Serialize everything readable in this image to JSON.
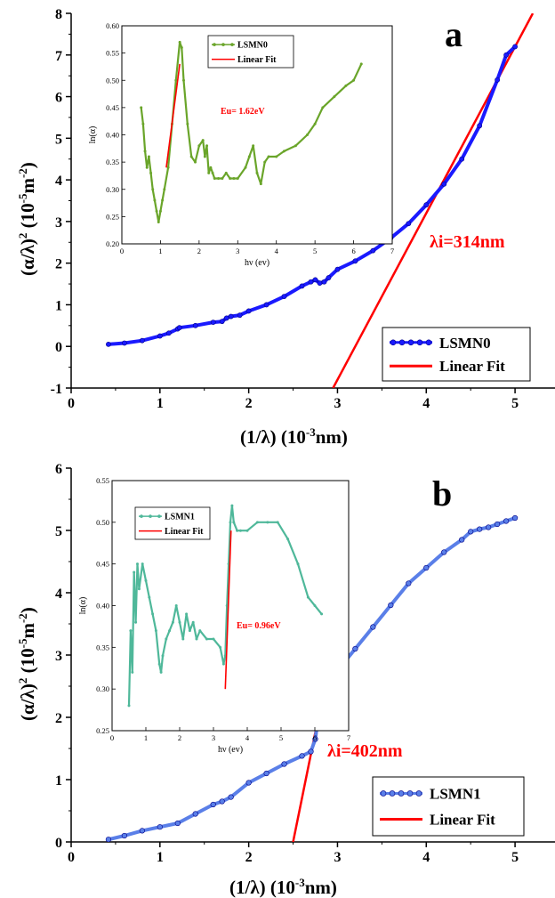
{
  "chart_data": [
    {
      "type": "scatter",
      "panel_label": "a",
      "xlabel_main": "(1/λ) (10",
      "xlabel_sup": "-3",
      "xlabel_tail": "nm)",
      "ylabel_main": "(α/λ)",
      "ylabel_sup1": "2",
      "ylabel_mid": " (10",
      "ylabel_sup2": "-5",
      "ylabel_tail": "m",
      "ylabel_sup3": "-2",
      "ylabel_close": ")",
      "xlim": [
        0,
        5.45
      ],
      "ylim": [
        -1,
        8
      ],
      "xticks": [
        "0",
        "1",
        "2",
        "3",
        "4",
        "5"
      ],
      "yticks": [
        "-1",
        "0",
        "1",
        "2",
        "3",
        "4",
        "5",
        "6",
        "7",
        "8"
      ],
      "annotation": "λi=314nm",
      "legend": [
        "LSMN0",
        "Linear Fit"
      ],
      "series": [
        {
          "name": "LSMN0",
          "color": "#1a1aff",
          "x": [
            0.42,
            0.6,
            0.8,
            1.0,
            1.1,
            1.2,
            1.22,
            1.4,
            1.6,
            1.7,
            1.75,
            1.8,
            1.9,
            2.0,
            2.2,
            2.4,
            2.6,
            2.7,
            2.75,
            2.8,
            2.85,
            2.9,
            3.0,
            3.2,
            3.4,
            3.6,
            3.8,
            4.0,
            4.2,
            4.4,
            4.6,
            4.8,
            4.9,
            5.0
          ],
          "y": [
            0.05,
            0.08,
            0.14,
            0.25,
            0.32,
            0.42,
            0.45,
            0.5,
            0.58,
            0.6,
            0.68,
            0.72,
            0.75,
            0.85,
            1.0,
            1.2,
            1.45,
            1.55,
            1.6,
            1.52,
            1.55,
            1.65,
            1.85,
            2.05,
            2.3,
            2.6,
            2.95,
            3.4,
            3.9,
            4.5,
            5.3,
            6.4,
            7.0,
            7.2
          ]
        },
        {
          "name": "Linear Fit",
          "color": "#ff0000",
          "x": [
            2.95,
            5.2
          ],
          "y": [
            -1.0,
            8.0
          ]
        }
      ],
      "inset": {
        "xlabel": "hν (ev)",
        "ylabel": "ln(α)",
        "xlim": [
          0,
          7
        ],
        "ylim": [
          0.2,
          0.6
        ],
        "xticks": [
          "0",
          "1",
          "2",
          "3",
          "4",
          "5",
          "6",
          "7"
        ],
        "yticks": [
          "0.20",
          "0.25",
          "0.30",
          "0.35",
          "0.40",
          "0.45",
          "0.50",
          "0.55",
          "0.60"
        ],
        "annotation": "Eu= 1.62eV",
        "legend": [
          "LSMN0",
          "Linear Fit"
        ],
        "series": [
          {
            "name": "LSMN0",
            "color": "#6aa52a",
            "x": [
              0.5,
              0.55,
              0.6,
              0.65,
              0.7,
              0.75,
              0.8,
              0.85,
              0.9,
              0.95,
              1.0,
              1.05,
              1.1,
              1.2,
              1.3,
              1.4,
              1.5,
              1.55,
              1.6,
              1.7,
              1.8,
              1.9,
              2.0,
              2.1,
              2.15,
              2.2,
              2.25,
              2.3,
              2.35,
              2.4,
              2.5,
              2.6,
              2.7,
              2.8,
              2.9,
              3.0,
              3.2,
              3.3,
              3.4,
              3.5,
              3.6,
              3.7,
              3.8,
              4.0,
              4.2,
              4.5,
              4.8,
              5.0,
              5.2,
              5.5,
              5.8,
              6.0,
              6.2
            ],
            "y": [
              0.45,
              0.42,
              0.37,
              0.34,
              0.36,
              0.33,
              0.3,
              0.28,
              0.26,
              0.24,
              0.26,
              0.28,
              0.3,
              0.34,
              0.42,
              0.5,
              0.57,
              0.56,
              0.5,
              0.42,
              0.36,
              0.35,
              0.38,
              0.39,
              0.36,
              0.38,
              0.33,
              0.34,
              0.33,
              0.32,
              0.32,
              0.32,
              0.33,
              0.32,
              0.32,
              0.32,
              0.34,
              0.36,
              0.38,
              0.33,
              0.31,
              0.35,
              0.36,
              0.36,
              0.37,
              0.38,
              0.4,
              0.42,
              0.45,
              0.47,
              0.49,
              0.5,
              0.53
            ]
          },
          {
            "name": "Linear Fit",
            "color": "#ff0000",
            "x": [
              1.15,
              1.5
            ],
            "y": [
              0.34,
              0.53
            ]
          }
        ]
      }
    },
    {
      "type": "scatter",
      "panel_label": "b",
      "xlabel_main": "(1/λ) (10",
      "xlabel_sup": "-3",
      "xlabel_tail": "nm)",
      "ylabel_main": "(α/λ)",
      "ylabel_sup1": "2",
      "ylabel_mid": " (10",
      "ylabel_sup2": "-5",
      "ylabel_tail": "m",
      "ylabel_sup3": "-2",
      "ylabel_close": ")",
      "xlim": [
        0,
        5.45
      ],
      "ylim": [
        0,
        6
      ],
      "xticks": [
        "0",
        "1",
        "2",
        "3",
        "4",
        "5"
      ],
      "yticks": [
        "0",
        "1",
        "2",
        "3",
        "4",
        "5",
        "6"
      ],
      "annotation": "λi=402nm",
      "legend": [
        "LSMN1",
        "Linear Fit"
      ],
      "series": [
        {
          "name": "LSMN1",
          "color": "#5a7fe8",
          "x": [
            0.42,
            0.6,
            0.8,
            1.0,
            1.2,
            1.4,
            1.6,
            1.7,
            1.8,
            2.0,
            2.2,
            2.4,
            2.6,
            2.7,
            2.75,
            2.8,
            2.85,
            2.9,
            3.0,
            3.2,
            3.4,
            3.6,
            3.8,
            4.0,
            4.2,
            4.4,
            4.5,
            4.6,
            4.7,
            4.8,
            4.9,
            5.0
          ],
          "y": [
            0.04,
            0.1,
            0.18,
            0.24,
            0.3,
            0.45,
            0.6,
            0.65,
            0.72,
            0.95,
            1.1,
            1.25,
            1.38,
            1.45,
            1.65,
            2.2,
            2.55,
            2.6,
            2.75,
            3.1,
            3.45,
            3.8,
            4.15,
            4.4,
            4.65,
            4.85,
            4.98,
            5.02,
            5.05,
            5.1,
            5.15,
            5.2
          ]
        },
        {
          "name": "Linear Fit",
          "color": "#ff0000",
          "x": [
            2.5,
            2.87
          ],
          "y": [
            0.0,
            2.6
          ]
        }
      ],
      "inset": {
        "xlabel": "hν (ev)",
        "ylabel": "ln(α)",
        "xlim": [
          0,
          7
        ],
        "ylim": [
          0.25,
          0.55
        ],
        "xticks": [
          "0",
          "1",
          "2",
          "3",
          "4",
          "5",
          "6",
          "7"
        ],
        "yticks": [
          "0.25",
          "0.30",
          "0.35",
          "0.40",
          "0.45",
          "0.50",
          "0.55"
        ],
        "annotation": "Eu= 0.96eV",
        "legend": [
          "LSMN1",
          "Linear Fit"
        ],
        "series": [
          {
            "name": "LSMN1",
            "color": "#4fb89a",
            "x": [
              0.5,
              0.55,
              0.6,
              0.65,
              0.7,
              0.75,
              0.8,
              0.9,
              1.0,
              1.1,
              1.2,
              1.3,
              1.4,
              1.45,
              1.5,
              1.6,
              1.7,
              1.8,
              1.9,
              2.0,
              2.1,
              2.2,
              2.3,
              2.4,
              2.5,
              2.6,
              2.8,
              3.0,
              3.2,
              3.3,
              3.35,
              3.4,
              3.45,
              3.5,
              3.55,
              3.6,
              3.7,
              3.8,
              4.0,
              4.3,
              4.6,
              4.9,
              5.2,
              5.5,
              5.8,
              6.0,
              6.2
            ],
            "y": [
              0.28,
              0.37,
              0.32,
              0.44,
              0.38,
              0.45,
              0.42,
              0.45,
              0.43,
              0.41,
              0.39,
              0.37,
              0.33,
              0.32,
              0.34,
              0.36,
              0.37,
              0.38,
              0.4,
              0.38,
              0.36,
              0.39,
              0.37,
              0.38,
              0.36,
              0.37,
              0.36,
              0.36,
              0.35,
              0.33,
              0.34,
              0.4,
              0.45,
              0.5,
              0.52,
              0.5,
              0.49,
              0.49,
              0.49,
              0.5,
              0.5,
              0.5,
              0.48,
              0.45,
              0.41,
              0.4,
              0.39
            ]
          },
          {
            "name": "Linear Fit",
            "color": "#ff0000",
            "x": [
              3.35,
              3.52
            ],
            "y": [
              0.3,
              0.49
            ]
          }
        ]
      }
    }
  ]
}
